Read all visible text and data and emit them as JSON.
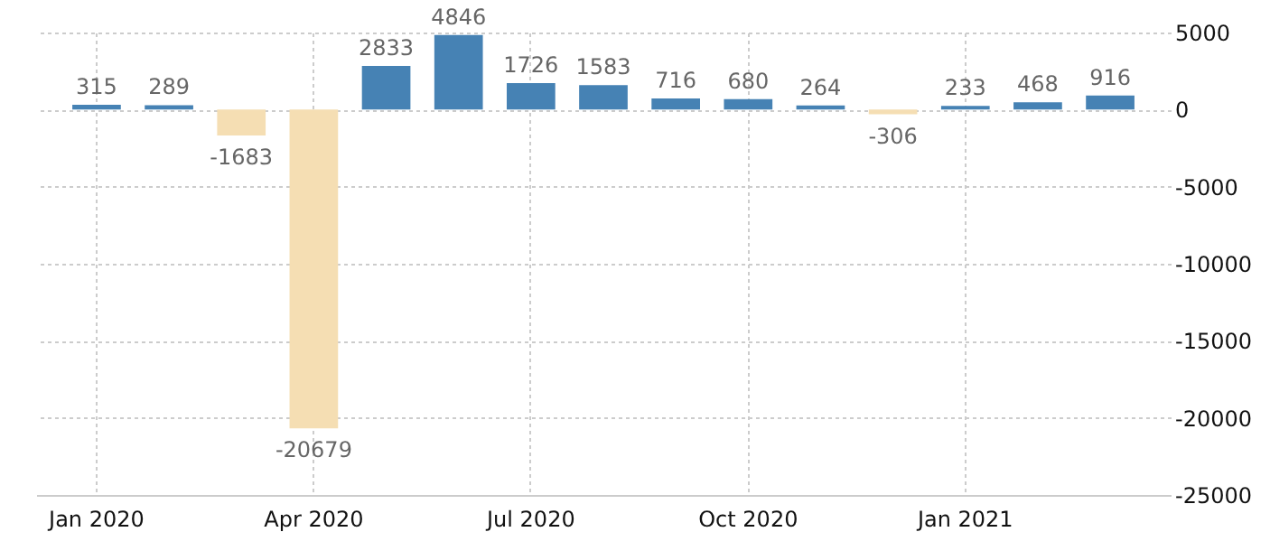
{
  "chart_data": {
    "type": "bar",
    "categories": [
      "Jan 2020",
      null,
      null,
      "Apr 2020",
      null,
      null,
      "Jul 2020",
      null,
      null,
      "Oct 2020",
      null,
      null,
      "Jan 2021",
      null,
      null
    ],
    "values": [
      315,
      289,
      -1683,
      -20679,
      2833,
      4846,
      1726,
      1583,
      716,
      680,
      264,
      -306,
      233,
      468,
      916
    ],
    "colors": [
      "#4682b4",
      "#4682b4",
      "#f5deb3",
      "#f5deb3",
      "#4682b4",
      "#4682b4",
      "#4682b4",
      "#4682b4",
      "#4682b4",
      "#4682b4",
      "#4682b4",
      "#f5deb3",
      "#4682b4",
      "#4682b4",
      "#4682b4"
    ],
    "data_labels": true,
    "ylim": [
      -25000,
      5000
    ],
    "yticks": [
      -25000,
      -20000,
      -15000,
      -10000,
      -5000,
      0,
      5000
    ],
    "grid": true
  }
}
